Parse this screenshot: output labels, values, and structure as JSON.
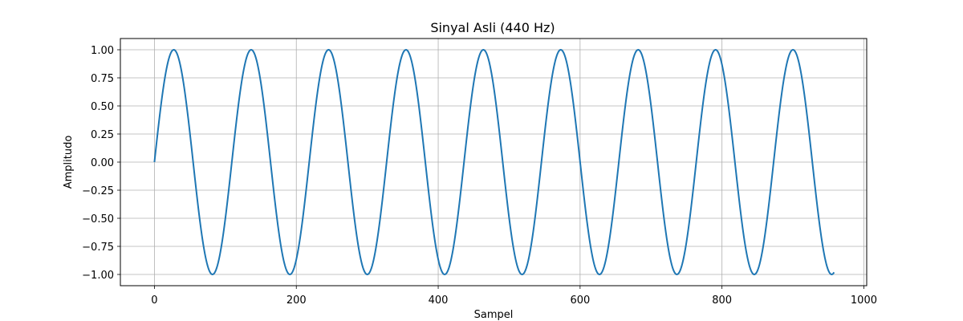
{
  "chart_data": {
    "type": "line",
    "title": "Sinyal Asli (440 Hz)",
    "xlabel": "Sampel",
    "ylabel": "Amplitudo",
    "xlim": [
      -48,
      1004
    ],
    "ylim": [
      -1.1,
      1.1
    ],
    "xticks": [
      0,
      200,
      400,
      600,
      800,
      1000
    ],
    "yticks": [
      1.0,
      0.75,
      0.5,
      0.25,
      0.0,
      -0.25,
      -0.5,
      -0.75,
      -1.0
    ],
    "xtick_labels": [
      "0",
      "200",
      "400",
      "600",
      "800",
      "1000"
    ],
    "ytick_labels": [
      "1.00",
      "0.75",
      "0.50",
      "0.25",
      "0.00",
      "−0.25",
      "−0.50",
      "−0.75",
      "−1.00"
    ],
    "grid": true,
    "series": [
      {
        "color": "#1f77b4",
        "function": "sine",
        "amplitude": 1.0,
        "samples_per_cycle": 109.1,
        "x_start": 0,
        "x_end": 958
      }
    ]
  }
}
